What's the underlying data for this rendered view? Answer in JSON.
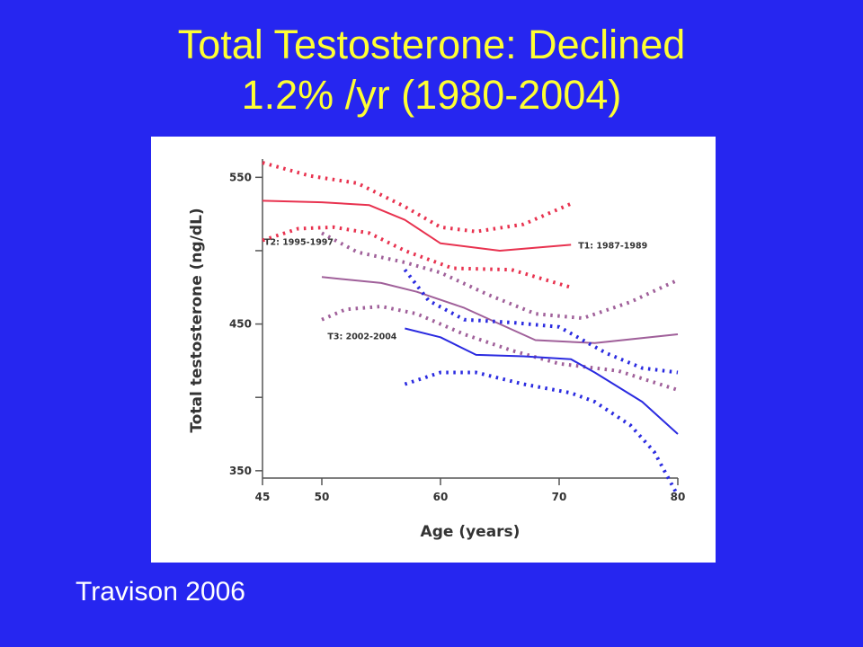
{
  "slide": {
    "title_line1": "Total Testosterone: Declined",
    "title_line2": "1.2% /yr (1980-2004)",
    "source": "Travison 2006"
  },
  "colors": {
    "background": "#2626f0",
    "title": "#ffff33",
    "t1": "#e8324f",
    "t2": "#a0609a",
    "t3": "#2a2ae0"
  },
  "chart_data": {
    "type": "line",
    "title": "",
    "xlabel": "Age (years)",
    "ylabel": "Total testosterone (ng/dL)",
    "xlim": [
      45,
      80
    ],
    "ylim": [
      345,
      560
    ],
    "xticks": [
      45,
      50,
      60,
      70,
      80
    ],
    "yticks": [
      350,
      400,
      450,
      500,
      550
    ],
    "ytick_labels": [
      "350",
      "",
      "450",
      "",
      "550"
    ],
    "grid": false,
    "legend": "inline labels",
    "series": [
      {
        "name": "T1: 1987-1989",
        "color_key": "t1",
        "x": [
          45,
          50,
          54,
          57,
          60,
          65,
          71
        ],
        "y": [
          534,
          533,
          531,
          521,
          505,
          500,
          504
        ],
        "lower": {
          "x": [
            45,
            48,
            51,
            54,
            57,
            61,
            66,
            71
          ],
          "y": [
            507,
            515,
            516,
            512,
            500,
            488,
            487,
            475
          ]
        },
        "upper": {
          "x": [
            45,
            49,
            53,
            57,
            60,
            63,
            67,
            71
          ],
          "y": [
            560,
            551,
            546,
            530,
            516,
            513,
            518,
            532
          ]
        }
      },
      {
        "name": "T2: 1995-1997",
        "color_key": "t2",
        "x": [
          50,
          55,
          58,
          62,
          65,
          68,
          73,
          80
        ],
        "y": [
          482,
          478,
          472,
          461,
          450,
          439,
          437,
          443
        ],
        "lower": {
          "x": [
            50,
            52,
            55,
            58,
            62,
            66,
            70,
            75,
            80
          ],
          "y": [
            453,
            460,
            462,
            457,
            443,
            432,
            423,
            418,
            405
          ]
        },
        "upper": {
          "x": [
            50,
            53,
            57,
            60,
            64,
            68,
            72,
            76,
            80
          ],
          "y": [
            512,
            499,
            492,
            485,
            470,
            457,
            454,
            465,
            480
          ]
        }
      },
      {
        "name": "T3: 2002-2004",
        "color_key": "t3",
        "x": [
          57,
          60,
          63,
          67,
          71,
          73,
          77,
          80
        ],
        "y": [
          447,
          441,
          429,
          428,
          426,
          417,
          397,
          375
        ],
        "lower": {
          "x": [
            57,
            60,
            63,
            67,
            71,
            73,
            76,
            78,
            80
          ],
          "y": [
            409,
            417,
            417,
            409,
            403,
            397,
            381,
            363,
            333
          ]
        },
        "upper": {
          "x": [
            57,
            59,
            62,
            66,
            70,
            74,
            77,
            80
          ],
          "y": [
            487,
            466,
            453,
            451,
            448,
            430,
            420,
            417
          ]
        }
      }
    ]
  }
}
